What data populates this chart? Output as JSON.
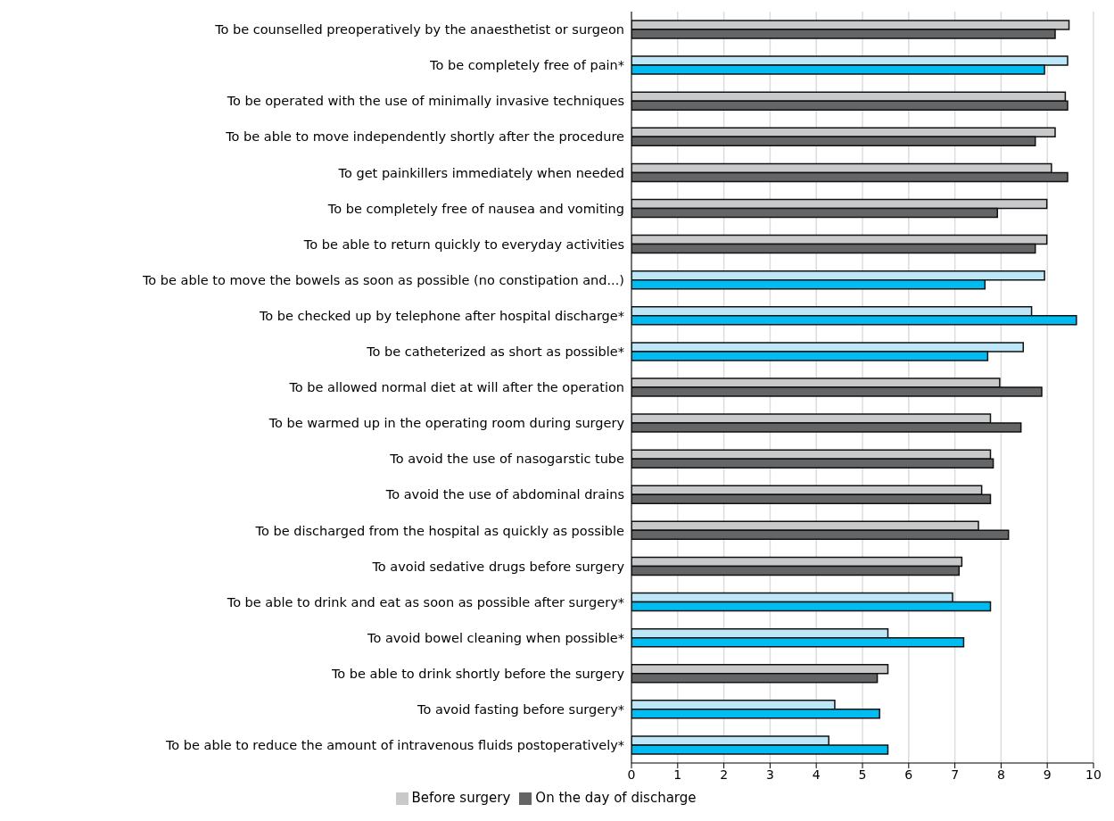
{
  "chart_data": {
    "type": "bar",
    "orientation": "horizontal",
    "categories": [
      "To be counselled preoperatively by the anaesthetist or surgeon",
      "To be completely free of pain*",
      "To be operated with the use of minimally invasive techniques",
      "To be able to move independently shortly after the procedure",
      "To get painkillers immediately when needed",
      "To be completely free of nausea and vomiting",
      "To be able to return quickly to everyday activities",
      "To be able to move the bowels as soon as possible (no constipation and...)",
      "To be checked up by telephone after hospital discharge*",
      "To be catheterized as short as possible*",
      "To be allowed normal diet at will after the operation",
      "To be warmed up in the operating room during surgery",
      "To avoid the use of nasogarstic tube",
      "To avoid the use of abdominal drains",
      "To be discharged from the hospital as quickly as possible",
      "To avoid sedative drugs before surgery",
      "To be able to drink and eat as soon as possible after surgery*",
      "To avoid bowel cleaning when possible*",
      "To be able to drink shortly before the surgery",
      "To avoid fasting before surgery*",
      "To be able to reduce the amount of intravenous fluids postoperatively*"
    ],
    "series": [
      {
        "name": "Before surgery",
        "color": "#c8c9cb",
        "colors": [
          "#c8c9cb",
          "#bde6f7",
          "#c8c9cb",
          "#c8c9cb",
          "#c8c9cb",
          "#c8c9cb",
          "#c8c9cb",
          "#bde6f7",
          "#bde6f7",
          "#bde6f7",
          "#c8c9cb",
          "#c8c9cb",
          "#c8c9cb",
          "#c8c9cb",
          "#c8c9cb",
          "#c8c9cb",
          "#bde6f7",
          "#bde6f7",
          "#c8c9cb",
          "#bde6f7",
          "#bde6f7"
        ],
        "values": [
          9.47,
          9.44,
          9.39,
          9.17,
          9.09,
          8.99,
          8.99,
          8.94,
          8.66,
          8.48,
          7.97,
          7.77,
          7.77,
          7.58,
          7.51,
          7.15,
          6.95,
          5.55,
          5.55,
          4.4,
          4.27
        ]
      },
      {
        "name": "On the day of discharge",
        "color": "#646567",
        "colors": [
          "#646567",
          "#00bcf0",
          "#646567",
          "#646567",
          "#646567",
          "#646567",
          "#646567",
          "#00bcf0",
          "#00bcf0",
          "#00bcf0",
          "#646567",
          "#646567",
          "#646567",
          "#646567",
          "#646567",
          "#646567",
          "#00bcf0",
          "#00bcf0",
          "#646567",
          "#00bcf0",
          "#00bcf0"
        ],
        "values": [
          9.17,
          8.94,
          9.44,
          8.74,
          9.44,
          7.92,
          8.74,
          7.65,
          9.63,
          7.71,
          8.88,
          8.43,
          7.83,
          7.77,
          8.16,
          7.09,
          7.77,
          7.19,
          5.32,
          5.37,
          5.55
        ]
      }
    ],
    "xlim": [
      0,
      10
    ],
    "xticks": [
      0,
      1,
      2,
      3,
      4,
      5,
      6,
      7,
      8,
      9,
      10
    ],
    "grid": "x",
    "legend": "bottom"
  }
}
